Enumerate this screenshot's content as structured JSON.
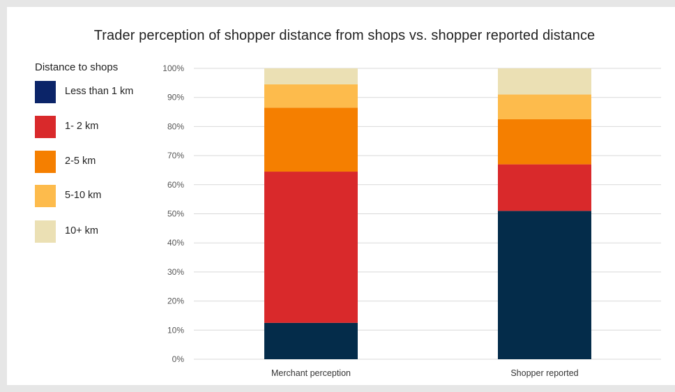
{
  "chart_data": {
    "type": "bar",
    "stacked": true,
    "title": "Trader perception of shopper distance from shops vs. shopper reported distance",
    "legend_title": "Distance to shops",
    "legend_placement": "left",
    "categories": [
      "Merchant perception",
      "Shopper reported"
    ],
    "ylim": [
      0,
      100
    ],
    "yticks": [
      "0%",
      "10%",
      "20%",
      "30%",
      "40%",
      "50%",
      "60%",
      "70%",
      "80%",
      "90%",
      "100%"
    ],
    "grid": true,
    "series": [
      {
        "name": "Less than 1 km",
        "color": "#042c4a",
        "legend_color": "#0b2468",
        "values": [
          12.5,
          51
        ]
      },
      {
        "name": "1- 2 km",
        "color": "#d9292b",
        "legend_color": "#d9292b",
        "values": [
          52,
          16
        ]
      },
      {
        "name": "2-5 km",
        "color": "#f57f00",
        "legend_color": "#f57f00",
        "values": [
          22,
          15.5
        ]
      },
      {
        "name": "5-10 km",
        "color": "#fdbb4c",
        "legend_color": "#fdbb4c",
        "values": [
          8,
          8.5
        ]
      },
      {
        "name": "10+ km",
        "color": "#ebe0b4",
        "legend_color": "#ebe0b4",
        "values": [
          5.5,
          9
        ]
      }
    ]
  }
}
